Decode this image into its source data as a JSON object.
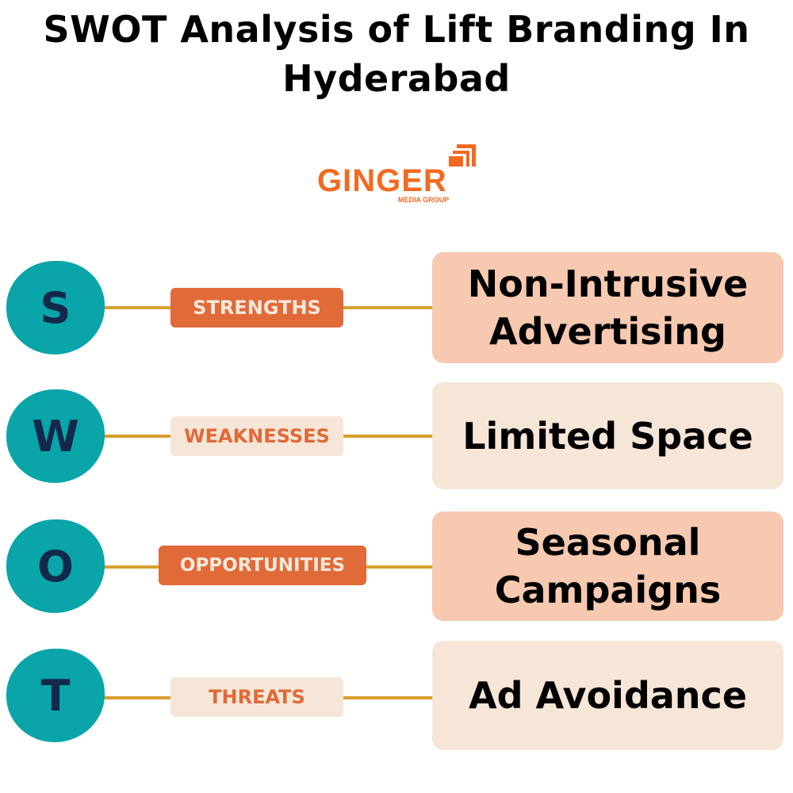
{
  "title": "SWOT Analysis of Lift Branding In Hyderabad",
  "logo": {
    "name": "GINGER",
    "tagline": "MEDIA GROUP"
  },
  "colors": {
    "circle": "#0aa5a8",
    "letter": "#13294b",
    "accent": "#e06a38",
    "cream": "#f5e6d8",
    "pink": "#f6c9b0",
    "connector": "#d9a030"
  },
  "rows": [
    {
      "letter": "S",
      "label": "STRENGTHS",
      "point": "Non-Intrusive Advertising"
    },
    {
      "letter": "W",
      "label": "WEAKNESSES",
      "point": "Limited Space"
    },
    {
      "letter": "O",
      "label": "OPPORTUNITIES",
      "point": "Seasonal Campaigns"
    },
    {
      "letter": "T",
      "label": "THREATS",
      "point": "Ad Avoidance"
    }
  ]
}
